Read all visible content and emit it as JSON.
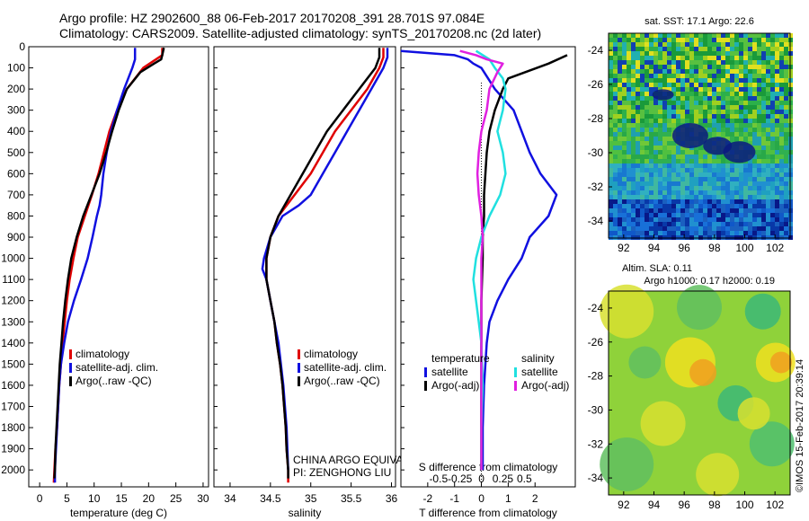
{
  "header": {
    "line1": "Argo profile: HZ 2902600_88 06-Feb-2017 20170208_391 28.701S 97.084E",
    "line2": "Climatology: CARS2009. Satellite-adjusted climatology: synTS_20170208.nc (2d later)"
  },
  "colors": {
    "climatology": "#e00000",
    "satellite": "#1010e0",
    "argo": "#000000",
    "sat_salinity": "#20e0e0",
    "argo_salinity": "#e020e0"
  },
  "chart_data": [
    {
      "id": "temperature",
      "type": "line",
      "xlabel": "temperature (deg C)",
      "ylabel": "",
      "xlim": [
        -2,
        31
      ],
      "ylim": [
        2080,
        0
      ],
      "xticks": [
        0,
        5,
        10,
        15,
        20,
        25,
        30
      ],
      "yticks": [
        0,
        100,
        200,
        300,
        400,
        500,
        600,
        700,
        800,
        900,
        1000,
        1100,
        1200,
        1300,
        1400,
        1500,
        1600,
        1700,
        1800,
        1900,
        2000
      ],
      "legend": [
        "climatology",
        "satellite-adj. clim.",
        "Argo(..raw -QC)"
      ],
      "series": [
        {
          "name": "climatology",
          "color": "#e00000",
          "points": [
            [
              22.5,
              5
            ],
            [
              22.5,
              40
            ],
            [
              19,
              100
            ],
            [
              16,
              200
            ],
            [
              14.2,
              300
            ],
            [
              12.8,
              400
            ],
            [
              11.8,
              500
            ],
            [
              10.8,
              600
            ],
            [
              9.6,
              700
            ],
            [
              8.3,
              800
            ],
            [
              7.0,
              900
            ],
            [
              6.2,
              1000
            ],
            [
              5.5,
              1100
            ],
            [
              5.0,
              1200
            ],
            [
              4.6,
              1300
            ],
            [
              4.2,
              1400
            ],
            [
              3.9,
              1500
            ],
            [
              3.6,
              1600
            ],
            [
              3.4,
              1700
            ],
            [
              3.2,
              1800
            ],
            [
              2.9,
              1900
            ],
            [
              2.7,
              2000
            ],
            [
              2.6,
              2060
            ]
          ]
        },
        {
          "name": "satellite-adj. clim.",
          "color": "#1010e0",
          "points": [
            [
              17.5,
              5
            ],
            [
              17.5,
              60
            ],
            [
              17,
              100
            ],
            [
              15.5,
              200
            ],
            [
              14.2,
              300
            ],
            [
              13.1,
              400
            ],
            [
              12.3,
              500
            ],
            [
              11.7,
              600
            ],
            [
              11.3,
              700
            ],
            [
              11.0,
              750
            ],
            [
              10.5,
              800
            ],
            [
              9.7,
              900
            ],
            [
              8.8,
              1000
            ],
            [
              7.6,
              1100
            ],
            [
              6.3,
              1200
            ],
            [
              5.2,
              1300
            ],
            [
              4.5,
              1400
            ],
            [
              3.9,
              1500
            ],
            [
              3.6,
              1600
            ],
            [
              3.4,
              1700
            ],
            [
              3.2,
              1800
            ],
            [
              3.0,
              1900
            ],
            [
              2.8,
              2000
            ],
            [
              2.8,
              2060
            ]
          ]
        },
        {
          "name": "Argo(..raw -QC)",
          "color": "#000000",
          "points": [
            [
              22.8,
              5
            ],
            [
              22.5,
              40
            ],
            [
              22.3,
              60
            ],
            [
              21,
              80
            ],
            [
              18.5,
              120
            ],
            [
              16,
              200
            ],
            [
              14.5,
              300
            ],
            [
              13.3,
              400
            ],
            [
              12.2,
              500
            ],
            [
              11.0,
              600
            ],
            [
              9.5,
              700
            ],
            [
              8.0,
              800
            ],
            [
              6.8,
              900
            ],
            [
              5.8,
              1000
            ],
            [
              5.2,
              1100
            ],
            [
              4.7,
              1200
            ],
            [
              4.3,
              1300
            ],
            [
              4.0,
              1400
            ],
            [
              3.7,
              1500
            ],
            [
              3.5,
              1600
            ],
            [
              3.3,
              1700
            ],
            [
              3.1,
              1800
            ],
            [
              2.9,
              1900
            ],
            [
              2.8,
              2000
            ],
            [
              2.7,
              2040
            ]
          ]
        }
      ]
    },
    {
      "id": "salinity",
      "type": "line",
      "xlabel": "salinity",
      "xlim": [
        33.8,
        36.05
      ],
      "ylim": [
        2080,
        0
      ],
      "xticks": [
        34,
        34.5,
        35,
        35.5,
        36
      ],
      "legend": [
        "climatology",
        "satellite-adj. clim.",
        "Argo(..raw -QC)"
      ],
      "series": [
        {
          "name": "climatology",
          "color": "#e00000",
          "points": [
            [
              35.9,
              5
            ],
            [
              35.9,
              50
            ],
            [
              35.85,
              100
            ],
            [
              35.7,
              200
            ],
            [
              35.5,
              300
            ],
            [
              35.3,
              400
            ],
            [
              35.15,
              500
            ],
            [
              35.0,
              600
            ],
            [
              34.8,
              700
            ],
            [
              34.6,
              800
            ],
            [
              34.5,
              900
            ],
            [
              34.45,
              1000
            ],
            [
              34.45,
              1100
            ],
            [
              34.5,
              1200
            ],
            [
              34.55,
              1300
            ],
            [
              34.58,
              1400
            ],
            [
              34.62,
              1500
            ],
            [
              34.65,
              1600
            ],
            [
              34.67,
              1700
            ],
            [
              34.69,
              1800
            ],
            [
              34.7,
              1900
            ],
            [
              34.72,
              2000
            ],
            [
              34.72,
              2060
            ]
          ]
        },
        {
          "name": "satellite-adj. clim.",
          "color": "#1010e0",
          "points": [
            [
              35.95,
              5
            ],
            [
              35.95,
              50
            ],
            [
              35.9,
              100
            ],
            [
              35.75,
              200
            ],
            [
              35.6,
              300
            ],
            [
              35.45,
              400
            ],
            [
              35.3,
              500
            ],
            [
              35.15,
              600
            ],
            [
              35.0,
              700
            ],
            [
              34.85,
              750
            ],
            [
              34.65,
              800
            ],
            [
              34.5,
              900
            ],
            [
              34.42,
              1000
            ],
            [
              34.4,
              1050
            ],
            [
              34.45,
              1100
            ],
            [
              34.5,
              1200
            ],
            [
              34.55,
              1300
            ],
            [
              34.6,
              1400
            ],
            [
              34.63,
              1500
            ],
            [
              34.66,
              1600
            ],
            [
              34.68,
              1700
            ],
            [
              34.7,
              1800
            ],
            [
              34.71,
              1900
            ],
            [
              34.72,
              2000
            ]
          ]
        },
        {
          "name": "Argo(..raw -QC)",
          "color": "#000000",
          "points": [
            [
              35.85,
              5
            ],
            [
              35.85,
              50
            ],
            [
              35.8,
              100
            ],
            [
              35.6,
              200
            ],
            [
              35.4,
              300
            ],
            [
              35.2,
              400
            ],
            [
              35.05,
              500
            ],
            [
              34.9,
              600
            ],
            [
              34.75,
              700
            ],
            [
              34.6,
              800
            ],
            [
              34.5,
              900
            ],
            [
              34.45,
              1000
            ],
            [
              34.45,
              1100
            ],
            [
              34.5,
              1200
            ],
            [
              34.55,
              1300
            ],
            [
              34.58,
              1400
            ],
            [
              34.62,
              1500
            ],
            [
              34.65,
              1600
            ],
            [
              34.67,
              1700
            ],
            [
              34.69,
              1800
            ],
            [
              34.7,
              1900
            ],
            [
              34.72,
              2000
            ],
            [
              34.72,
              2040
            ]
          ]
        }
      ],
      "annotation": [
        "CHINA ARGO EQUIVALENT",
        "PI: ZENGHONG LIU"
      ]
    },
    {
      "id": "difference",
      "type": "line",
      "xlabel": "T difference from climatology",
      "xlabel_top": "S difference from climatology",
      "xlim": [
        -3,
        3.5
      ],
      "ylim": [
        2080,
        0
      ],
      "xticks": [
        -2,
        -1,
        0,
        1,
        2
      ],
      "xticks_s": [
        "-0.5",
        "-0.25",
        "0",
        "0.25",
        "0.5"
      ],
      "legend_left_title": "temperature",
      "legend_right_title": "salinity",
      "legend": [
        "satellite",
        "Argo(-adj)",
        "satellite",
        "Argo(-adj)"
      ],
      "series": [
        {
          "name": "satellite",
          "group": "temperature",
          "color": "#1010e0",
          "points": [
            [
              -3,
              20
            ],
            [
              -1,
              40
            ],
            [
              -0.5,
              60
            ],
            [
              -0.3,
              80
            ],
            [
              0,
              100
            ],
            [
              0.5,
              200
            ],
            [
              1.2,
              300
            ],
            [
              1.5,
              400
            ],
            [
              1.8,
              500
            ],
            [
              2.2,
              600
            ],
            [
              2.8,
              700
            ],
            [
              2.5,
              800
            ],
            [
              1.8,
              900
            ],
            [
              1.5,
              1000
            ],
            [
              1.0,
              1100
            ],
            [
              0.6,
              1200
            ],
            [
              0.3,
              1300
            ],
            [
              0.2,
              1400
            ],
            [
              0.1,
              1600
            ],
            [
              0.05,
              1800
            ],
            [
              0.05,
              2000
            ]
          ]
        },
        {
          "name": "Argo(-adj)",
          "group": "temperature",
          "color": "#000000",
          "points": [
            [
              3.2,
              40
            ],
            [
              2.5,
              80
            ],
            [
              1,
              150
            ],
            [
              0.8,
              200
            ],
            [
              0.5,
              300
            ],
            [
              0.3,
              400
            ],
            [
              0.2,
              500
            ],
            [
              0.15,
              600
            ],
            [
              0.1,
              700
            ],
            [
              0.1,
              800
            ],
            [
              0.05,
              900
            ],
            [
              0.05,
              1000
            ],
            [
              0.0,
              1200
            ],
            [
              0.0,
              1500
            ],
            [
              0.0,
              1800
            ],
            [
              0.0,
              2000
            ]
          ]
        },
        {
          "name": "satellite",
          "group": "salinity",
          "color": "#20e0e0",
          "points": [
            [
              -0.2,
              20
            ],
            [
              0.3,
              60
            ],
            [
              0.5,
              100
            ],
            [
              0.8,
              150
            ],
            [
              0.9,
              200
            ],
            [
              0.8,
              300
            ],
            [
              0.6,
              400
            ],
            [
              0.8,
              500
            ],
            [
              0.9,
              600
            ],
            [
              0.7,
              700
            ],
            [
              0.3,
              800
            ],
            [
              0.0,
              900
            ],
            [
              -0.2,
              1000
            ],
            [
              -0.3,
              1100
            ],
            [
              -0.2,
              1200
            ],
            [
              -0.1,
              1300
            ],
            [
              0.0,
              1400
            ],
            [
              0.05,
              1600
            ],
            [
              0.0,
              1800
            ],
            [
              0.0,
              2000
            ]
          ]
        },
        {
          "name": "Argo(-adj)",
          "group": "salinity",
          "color": "#e020e0",
          "points": [
            [
              -0.8,
              20
            ],
            [
              -0.2,
              40
            ],
            [
              0.2,
              60
            ],
            [
              0.8,
              80
            ],
            [
              0.6,
              120
            ],
            [
              0.3,
              200
            ],
            [
              0.2,
              300
            ],
            [
              0.0,
              400
            ],
            [
              -0.1,
              500
            ],
            [
              -0.15,
              600
            ],
            [
              -0.1,
              700
            ],
            [
              0.0,
              800
            ],
            [
              0.05,
              900
            ],
            [
              0.0,
              1000
            ],
            [
              0.0,
              1200
            ],
            [
              0.0,
              1500
            ],
            [
              0.0,
              1800
            ],
            [
              0.0,
              2000
            ]
          ]
        }
      ]
    },
    {
      "id": "sst_map",
      "type": "heatmap",
      "title": "sat. SST: 17.1  Argo: 22.6",
      "xticks": [
        92,
        94,
        96,
        98,
        100,
        102
      ],
      "yticks": [
        -24,
        -26,
        -28,
        -30,
        -32,
        -34
      ],
      "xlim": [
        91,
        103
      ],
      "ylim": [
        -35,
        -23
      ]
    },
    {
      "id": "sla_map",
      "type": "heatmap",
      "title_line1": "Altim. SLA: 0.11",
      "title_line2": "Argo h1000: 0.17 h2000: 0.19",
      "xticks": [
        92,
        94,
        96,
        98,
        100,
        102
      ],
      "yticks": [
        -24,
        -26,
        -28,
        -30,
        -32,
        -34
      ],
      "xlim": [
        91,
        103
      ],
      "ylim": [
        -35,
        -23
      ]
    }
  ],
  "watermark": "©IMOS 15-Feb-2017 20:39:14"
}
